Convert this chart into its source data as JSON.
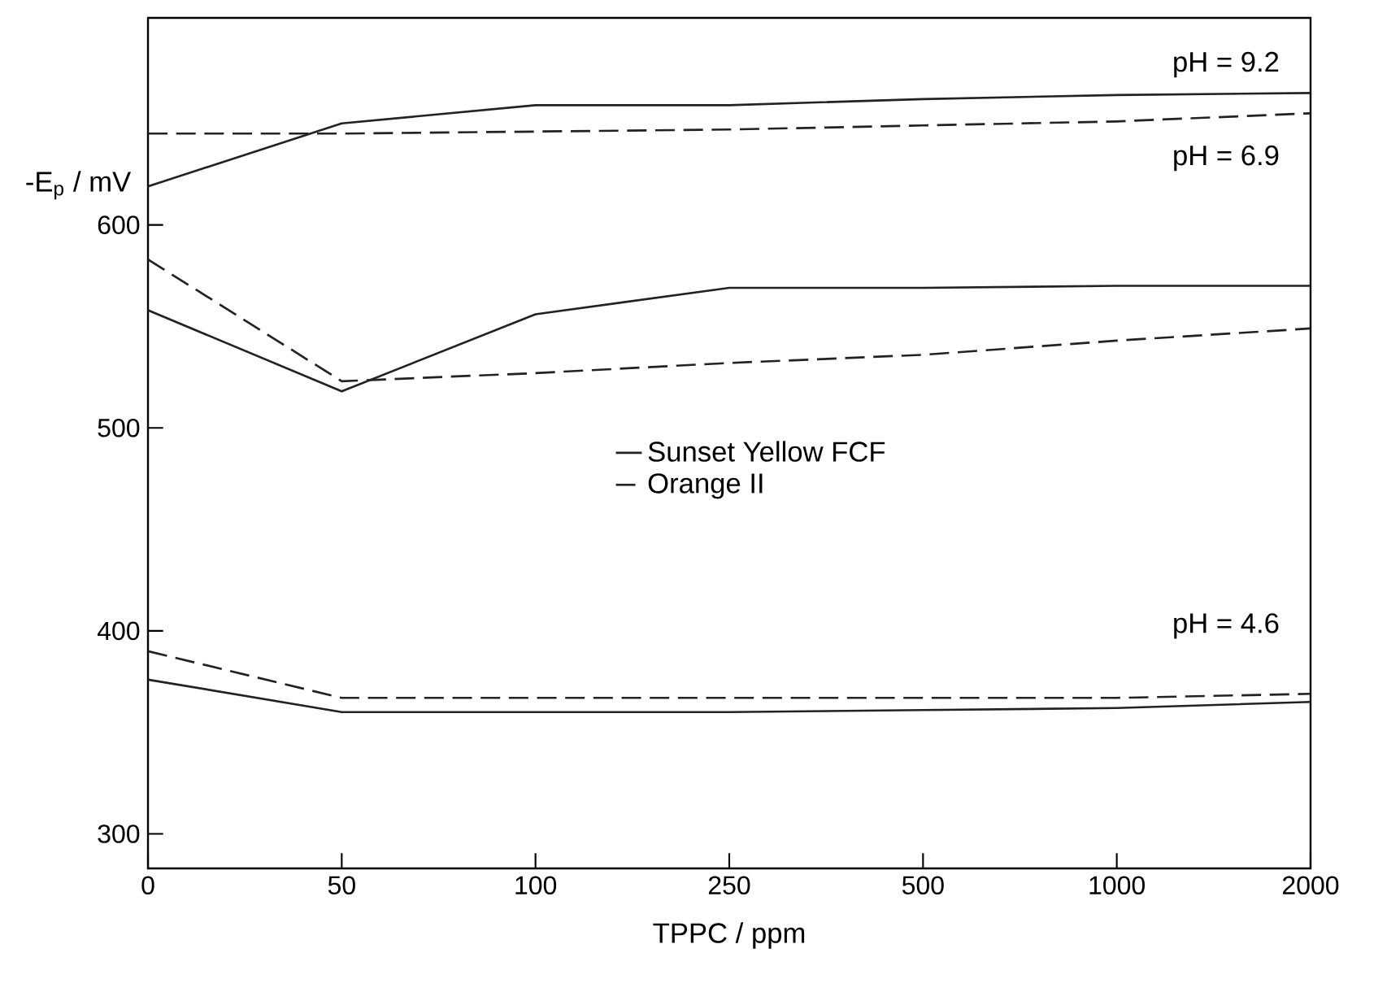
{
  "chart_data": {
    "type": "line",
    "xlabel": "TPPC / ppm",
    "ylabel": "-E$_{p}$ / mV",
    "categories": [
      "0",
      "50",
      "100",
      "250",
      "500",
      "1000",
      "2000"
    ],
    "ylim": [
      283,
      702
    ],
    "yticks": [
      300,
      400,
      500,
      600
    ],
    "series": [
      {
        "name": "Sunset Yellow FCF",
        "color": "#222222",
        "line_style": "solid",
        "values": [
          619,
          650,
          659,
          659,
          662,
          664,
          665
        ]
      },
      {
        "name": "Orange II",
        "color": "#222222",
        "line_style": "dashed",
        "values": [
          645,
          645,
          646,
          647,
          649,
          651,
          655
        ]
      },
      {
        "color": "#222222",
        "line_style": "solid",
        "values": [
          558,
          518,
          556,
          569,
          569,
          570,
          570
        ]
      },
      {
        "color": "#222222",
        "line_style": "dashed",
        "values": [
          583,
          523,
          527,
          532,
          536,
          543,
          549
        ]
      },
      {
        "color": "#222222",
        "line_style": "solid",
        "values": [
          376,
          360,
          360,
          360,
          361,
          362,
          365
        ]
      },
      {
        "color": "#222222",
        "line_style": "dashed",
        "values": [
          390,
          367,
          367,
          367,
          367,
          367,
          369
        ]
      }
    ],
    "annotations": [
      "pH = 9.2",
      "pH = 6.9",
      "pH = 4.6"
    ],
    "legend": "center right",
    "grid": false,
    "marker": "none"
  }
}
